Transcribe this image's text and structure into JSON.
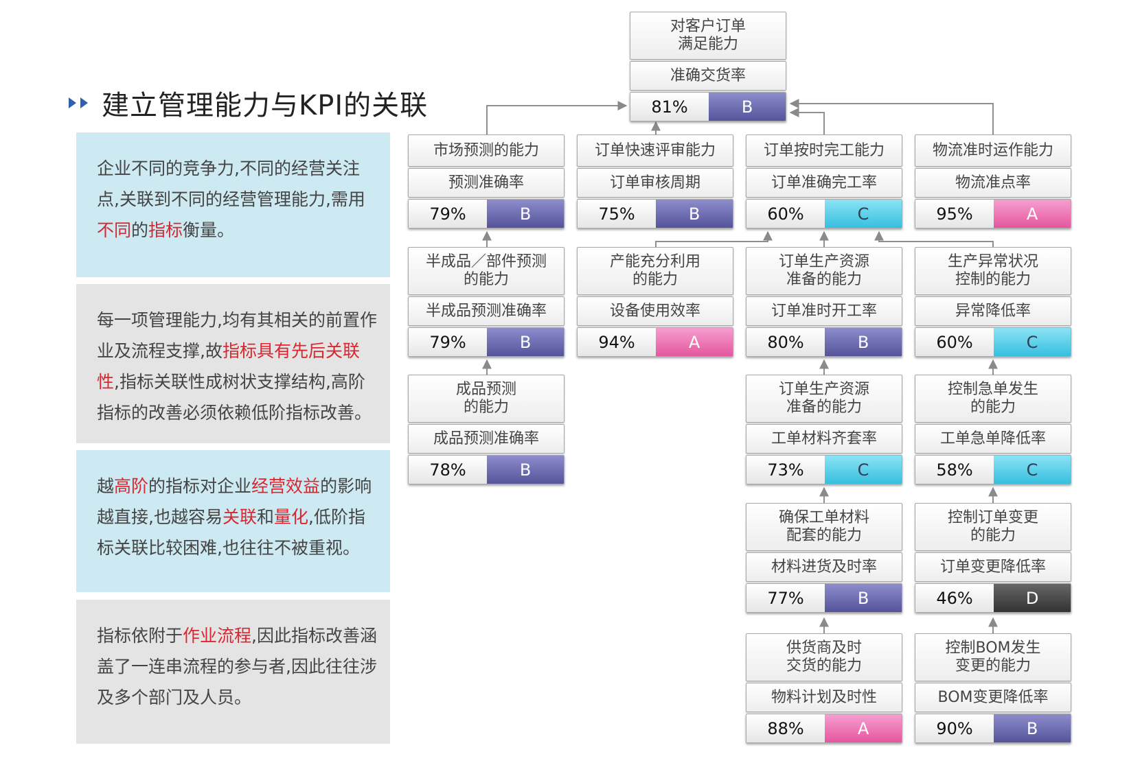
{
  "title": "建立管理能力与KPI的关联",
  "panels": [
    {
      "segments": [
        {
          "t": "企业不同的竞争力,不同的经营关注点,关联到不同的经营管理能力,需用",
          "red": false
        },
        {
          "t": "不同",
          "red": true
        },
        {
          "t": "的",
          "red": false
        },
        {
          "t": "指标",
          "red": true
        },
        {
          "t": "衡量。",
          "red": false
        }
      ]
    },
    {
      "segments": [
        {
          "t": "每一项管理能力,均有其相关的前置作业及流程支撑,故",
          "red": false
        },
        {
          "t": "指标具有先后关联性",
          "red": true
        },
        {
          "t": ",指标关联性成树状支撑结构,高阶指标的改善必须依赖低阶指标改善。",
          "red": false
        }
      ]
    },
    {
      "segments": [
        {
          "t": "越",
          "red": false
        },
        {
          "t": "高阶",
          "red": true
        },
        {
          "t": "的指标对企业",
          "red": false
        },
        {
          "t": "经营效益",
          "red": true
        },
        {
          "t": "的影响越直接,也越容易",
          "red": false
        },
        {
          "t": "关联",
          "red": true
        },
        {
          "t": "和",
          "red": false
        },
        {
          "t": "量化",
          "red": true
        },
        {
          "t": ",低阶指标关联比较困难,也往往不被重视。",
          "red": false
        }
      ]
    },
    {
      "segments": [
        {
          "t": "指标依附于",
          "red": false
        },
        {
          "t": "作业流程",
          "red": true
        },
        {
          "t": ",因此指标改善涵盖了一连串流程的参与者,因此往往涉及多个部门及人员。",
          "red": false
        }
      ]
    }
  ],
  "grade_colors": {
    "A": "#e5569e",
    "B": "#55549a",
    "C": "#36bfdf",
    "D": "#333333"
  },
  "nodes": [
    {
      "id": "root",
      "capability": [
        "对客户订单",
        "满足能力"
      ],
      "kpi": "准确交货率",
      "value": "81%",
      "grade": "B"
    },
    {
      "id": "market",
      "capability": [
        "市场预测的能力"
      ],
      "kpi": "预测准确率",
      "value": "79%",
      "grade": "B"
    },
    {
      "id": "review",
      "capability": [
        "订单快速评审能力"
      ],
      "kpi": "订单审核周期",
      "value": "75%",
      "grade": "B"
    },
    {
      "id": "ontime",
      "capability": [
        "订单按时完工能力"
      ],
      "kpi": "订单准确完工率",
      "value": "60%",
      "grade": "C"
    },
    {
      "id": "logistic",
      "capability": [
        "物流准时运作能力"
      ],
      "kpi": "物流准点率",
      "value": "95%",
      "grade": "A"
    },
    {
      "id": "semi",
      "capability": [
        "半成品／部件预测",
        "的能力"
      ],
      "kpi": "半成品预测准确率",
      "value": "79%",
      "grade": "B"
    },
    {
      "id": "capacity",
      "capability": [
        "产能充分利用",
        "的能力"
      ],
      "kpi": "设备使用效率",
      "value": "94%",
      "grade": "A"
    },
    {
      "id": "resprep1",
      "capability": [
        "订单生产资源",
        "准备的能力"
      ],
      "kpi": "订单准时开工率",
      "value": "80%",
      "grade": "B"
    },
    {
      "id": "anomaly",
      "capability": [
        "生产异常状况",
        "控制的能力"
      ],
      "kpi": "异常降低率",
      "value": "60%",
      "grade": "C"
    },
    {
      "id": "finished",
      "capability": [
        "成品预测",
        "的能力"
      ],
      "kpi": "成品预测准确率",
      "value": "78%",
      "grade": "B"
    },
    {
      "id": "resprep2",
      "capability": [
        "订单生产资源",
        "准备的能力"
      ],
      "kpi": "工单材料齐套率",
      "value": "73%",
      "grade": "C"
    },
    {
      "id": "urgent",
      "capability": [
        "控制急单发生",
        "的能力"
      ],
      "kpi": "工单急单降低率",
      "value": "58%",
      "grade": "C"
    },
    {
      "id": "material",
      "capability": [
        "确保工单材料",
        "配套的能力"
      ],
      "kpi": "材料进货及时率",
      "value": "77%",
      "grade": "B"
    },
    {
      "id": "change",
      "capability": [
        "控制订单变更",
        "的能力"
      ],
      "kpi": "订单变更降低率",
      "value": "46%",
      "grade": "D"
    },
    {
      "id": "supplier",
      "capability": [
        "供货商及时",
        "交货的能力"
      ],
      "kpi": "物料计划及时性",
      "value": "88%",
      "grade": "A"
    },
    {
      "id": "bom",
      "capability": [
        "控制BOM发生",
        "变更的能力"
      ],
      "kpi": "BOM变更降低率",
      "value": "90%",
      "grade": "B"
    }
  ]
}
